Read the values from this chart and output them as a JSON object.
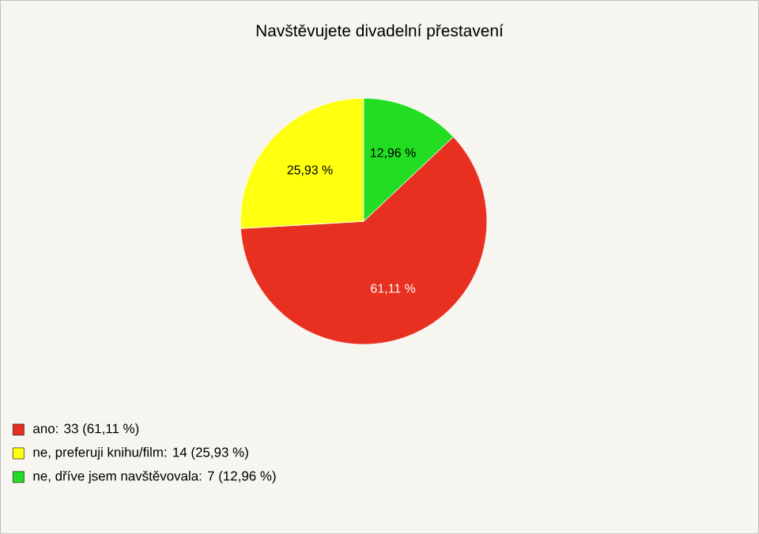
{
  "chart_data": {
    "type": "pie",
    "title": "Navštěvujete divadelní přestavení",
    "categories": [
      "ano: 33 (61,11 %)",
      "ne, preferuji knihu/film: 14 (25,93 %)",
      "ne, dříve jsem navštěvovala: 7 (12,96 %)"
    ],
    "values": [
      61.11,
      25.93,
      12.96
    ],
    "value_labels": [
      "61,11 %",
      "25,93 %",
      "12,96 %"
    ],
    "colors": [
      "#e83020",
      "#ffff10",
      "#22dd22"
    ],
    "legend": "bottom left"
  }
}
